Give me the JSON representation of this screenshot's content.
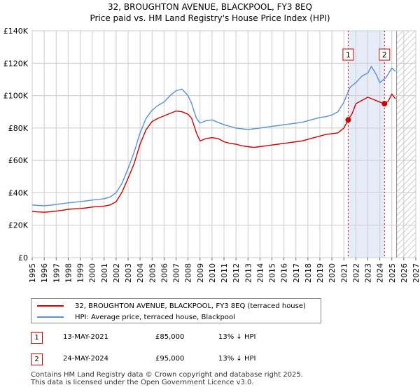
{
  "chart_data": {
    "type": "line",
    "title": "32, BROUGHTON AVENUE, BLACKPOOL, FY3 8EQ",
    "subtitle": "Price paid vs. HM Land Registry's House Price Index (HPI)",
    "xlim": [
      1995,
      2027
    ],
    "ylim": [
      0,
      140000
    ],
    "xticks": [
      1995,
      1996,
      1997,
      1998,
      1999,
      2000,
      2001,
      2002,
      2003,
      2004,
      2005,
      2006,
      2007,
      2008,
      2009,
      2010,
      2011,
      2012,
      2013,
      2014,
      2015,
      2016,
      2017,
      2018,
      2019,
      2020,
      2021,
      2022,
      2023,
      2024,
      2025,
      2026,
      2027
    ],
    "xtick_labels": [
      "1995",
      "1996",
      "1997",
      "1998",
      "1999",
      "2000",
      "2001",
      "2002",
      "2003",
      "2004",
      "2005",
      "2006",
      "2007",
      "2008",
      "2009",
      "2010",
      "2011",
      "2012",
      "2013",
      "2014",
      "2015",
      "2016",
      "2017",
      "2018",
      "2019",
      "2020",
      "2021",
      "2022",
      "2023",
      "2024",
      "2025",
      "2026",
      "2027"
    ],
    "yticks": [
      0,
      20000,
      40000,
      60000,
      80000,
      100000,
      120000,
      140000
    ],
    "ytick_labels": [
      "£0",
      "£20K",
      "£40K",
      "£60K",
      "£80K",
      "£100K",
      "£120K",
      "£140K"
    ],
    "grid": true,
    "shaded_period": [
      2021.36,
      2024.39
    ],
    "forecast_from": 2025.4,
    "series": [
      {
        "name": "32, BROUGHTON AVENUE, BLACKPOOL, FY3 8EQ (terraced house)",
        "color": "#cc0000",
        "x": [
          1995,
          1995.5,
          1996,
          1996.5,
          1997,
          1997.5,
          1998,
          1998.5,
          1999,
          1999.5,
          2000,
          2000.5,
          2001,
          2001.5,
          2002,
          2002.5,
          2003,
          2003.5,
          2004,
          2004.5,
          2005,
          2005.5,
          2006,
          2006.5,
          2007,
          2007.5,
          2008,
          2008.3,
          2008.7,
          2009,
          2009.5,
          2010,
          2010.5,
          2011,
          2011.5,
          2012,
          2012.5,
          2013,
          2013.5,
          2014,
          2014.5,
          2015,
          2015.5,
          2016,
          2016.5,
          2017,
          2017.5,
          2018,
          2018.5,
          2019,
          2019.5,
          2020,
          2020.5,
          2021,
          2021.36,
          2021.7,
          2022,
          2022.5,
          2023,
          2023.5,
          2024,
          2024.39,
          2024.7,
          2025,
          2025.3
        ],
        "values": [
          28500,
          28200,
          28000,
          28300,
          28700,
          29200,
          29800,
          30100,
          30300,
          30700,
          31200,
          31500,
          31800,
          32500,
          34500,
          40500,
          49000,
          58000,
          70000,
          79000,
          84000,
          86000,
          87500,
          89000,
          90500,
          90000,
          88500,
          86000,
          77000,
          72000,
          73500,
          74000,
          73500,
          71500,
          70500,
          70000,
          69000,
          68500,
          68000,
          68500,
          69000,
          69500,
          70000,
          70500,
          71000,
          71500,
          72000,
          73000,
          74000,
          75000,
          76000,
          76500,
          77000,
          80000,
          85000,
          89000,
          95000,
          97000,
          99000,
          97500,
          96000,
          95000,
          96500,
          101000,
          98000
        ]
      },
      {
        "name": "HPI: Average price, terraced house, Blackpool",
        "color": "#5b8fd4",
        "x": [
          1995,
          1995.5,
          1996,
          1996.5,
          1997,
          1997.5,
          1998,
          1998.5,
          1999,
          1999.5,
          2000,
          2000.5,
          2001,
          2001.5,
          2002,
          2002.5,
          2003,
          2003.5,
          2004,
          2004.5,
          2005,
          2005.5,
          2006,
          2006.5,
          2007,
          2007.5,
          2008,
          2008.3,
          2008.7,
          2009,
          2009.5,
          2010,
          2010.5,
          2011,
          2011.5,
          2012,
          2012.5,
          2013,
          2013.5,
          2014,
          2014.5,
          2015,
          2015.5,
          2016,
          2016.5,
          2017,
          2017.5,
          2018,
          2018.5,
          2019,
          2019.5,
          2020,
          2020.5,
          2021,
          2021.5,
          2022,
          2022.5,
          2023,
          2023.3,
          2023.7,
          2024,
          2024.5,
          2025,
          2025.3
        ],
        "values": [
          32500,
          32200,
          32000,
          32300,
          32800,
          33300,
          33800,
          34200,
          34600,
          35000,
          35500,
          35900,
          36400,
          37400,
          40000,
          46000,
          55000,
          65000,
          77000,
          86000,
          91000,
          94000,
          96000,
          100000,
          103000,
          104000,
          100000,
          95000,
          86000,
          83000,
          84500,
          85000,
          83500,
          82000,
          81000,
          80000,
          79500,
          79000,
          79500,
          80000,
          80500,
          81000,
          81500,
          82000,
          82500,
          83000,
          83500,
          84500,
          85500,
          86500,
          87000,
          88000,
          90000,
          96000,
          105000,
          108000,
          112000,
          114000,
          118000,
          113000,
          108000,
          111000,
          117000,
          115000
        ]
      }
    ],
    "annotations": [
      {
        "label": "1",
        "x": 2021.36
      },
      {
        "label": "2",
        "x": 2024.39
      }
    ]
  },
  "legend": {
    "property_label": "32, BROUGHTON AVENUE, BLACKPOOL, FY3 8EQ (terraced house)",
    "hpi_label": "HPI: Average price, terraced house, Blackpool"
  },
  "sales": [
    {
      "num": "1",
      "date": "13-MAY-2021",
      "price": "£85,000",
      "vs_hpi": "13% ↓ HPI"
    },
    {
      "num": "2",
      "date": "24-MAY-2024",
      "price": "£95,000",
      "vs_hpi": "13% ↓ HPI"
    }
  ],
  "footer": {
    "line1": "Contains HM Land Registry data © Crown copyright and database right 2025.",
    "line2": "This data is licensed under the Open Government Licence v3.0."
  },
  "colors": {
    "property": "#cc0000",
    "hpi": "#5b8fd4",
    "grid": "#cccccc",
    "shade": "#e6ecf8"
  }
}
